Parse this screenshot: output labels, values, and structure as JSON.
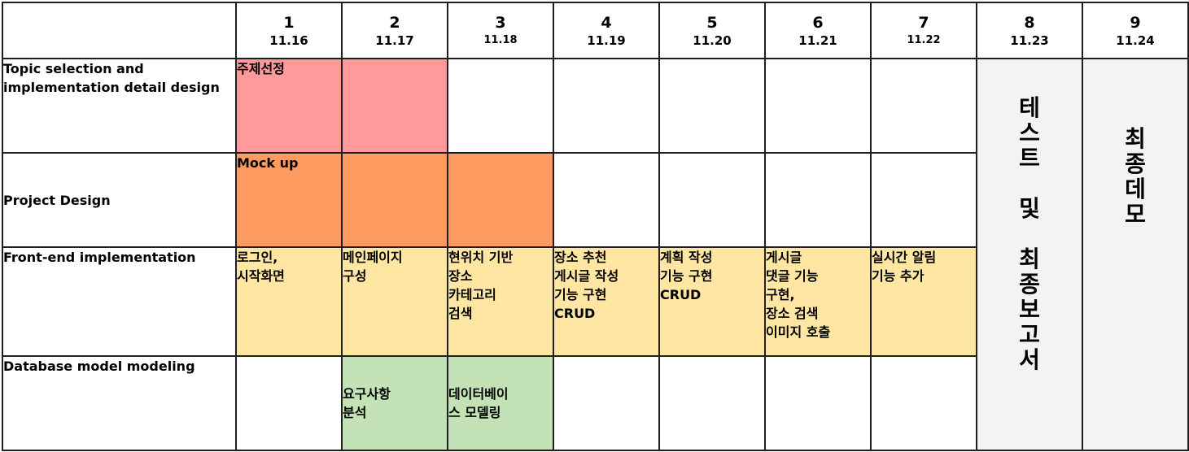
{
  "columns": [
    {
      "num": "1",
      "date": "11.16"
    },
    {
      "num": "2",
      "date": "11.17"
    },
    {
      "num": "3",
      "date": "11.18"
    },
    {
      "num": "4",
      "date": "11.19"
    },
    {
      "num": "5",
      "date": "11.20"
    },
    {
      "num": "6",
      "date": "11.21"
    },
    {
      "num": "7",
      "date": "11.22"
    },
    {
      "num": "8",
      "date": "11.23"
    },
    {
      "num": "9",
      "date": "11.24"
    }
  ],
  "rows": {
    "topic": {
      "label": "Topic selection and implementation detail design",
      "cells": [
        "주제선정",
        "",
        "",
        "",
        "",
        "",
        ""
      ]
    },
    "design": {
      "label": "Project Design",
      "cells": [
        "Mock up",
        "",
        "",
        "",
        "",
        "",
        ""
      ]
    },
    "frontend": {
      "label": "Front-end implementation",
      "cells": [
        "로그인,\n시작화면",
        "메인페이지\n구성",
        "현위치 기반\n장소\n카테고리\n검색",
        "장소 추천\n게시글 작성\n기능 구현\nCRUD",
        "계획 작성\n기능 구현\nCRUD",
        "게시글\n댓글 기능\n구현,\n장소 검색\n이미지 호출",
        "실시간 알림\n기능 추가"
      ]
    },
    "database": {
      "label": "Database model modeling",
      "cells": [
        "",
        "요구사항\n분석",
        "데이터베이\n스 모델링",
        "",
        "",
        "",
        ""
      ]
    }
  },
  "merged": {
    "col8_text": "테\n스\n트\n\n및\n\n최\n종\n보\n고\n서",
    "col9_text": "최\n종\n데\n모"
  },
  "colors": {
    "pink": "#ff9a9a",
    "orange": "#fe9b61",
    "yellow": "#ffe6a3",
    "green": "#c3e2b6",
    "grey": "#f3f3f3"
  }
}
